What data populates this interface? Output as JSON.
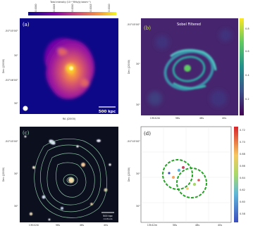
{
  "panels": {
    "a": {
      "label": "(a)",
      "colorbar_title": "Total intensity (10⁻⁴ MHz/Jy beam⁻¹)",
      "colorbar_ticks": [
        "0.0000",
        "0.0005",
        "0.0010",
        "0.0015",
        "0.0020"
      ],
      "scalebar_text": "500 kpc",
      "ylabel": "Dec (J2000)",
      "xlabel": "RA (J2000)",
      "y_ticks": [
        "-50°45'00\"",
        "30\"",
        "-50°46'00\"",
        "30\""
      ],
      "x_ticks": [
        "13h42m",
        "48s"
      ]
    },
    "b": {
      "label": "(b)",
      "title": "Sobel Filtered",
      "ylabel": "Dec (J2000)",
      "xlabel": "RA (J2000)",
      "y_ticks": [
        "-50°45'00\"",
        "30\"",
        "30\""
      ],
      "x_ticks": [
        "13h42m",
        "56s",
        "48s",
        "40s"
      ],
      "colorbar_ticks": [
        "0.8",
        "0.6",
        "0.4",
        "0.2"
      ]
    },
    "c": {
      "label": "(c)",
      "ylabel": "Dec (J2000)",
      "xlabel": "RA (J2000)",
      "y_ticks": [
        "-50°45'00\"",
        "30\"",
        "30\""
      ],
      "x_ticks": [
        "13h42m",
        "56s",
        "48s",
        "40s"
      ],
      "scalebar_text": "500 kpc",
      "scalebar_sub": "contours"
    },
    "d": {
      "label": "(d)",
      "ylabel": "Dec (J2000)",
      "xlabel": "RA (J2000)",
      "y_ticks": [
        "-50°45'00\"",
        "30\"",
        "30\""
      ],
      "x_ticks": [
        "13h42m",
        "56s",
        "48s",
        "40s"
      ],
      "colorbar_ticks": [
        "0.72",
        "0.70",
        "0.68",
        "0.66",
        "0.64",
        "0.62",
        "0.60",
        "0.58"
      ]
    }
  },
  "colors": {
    "plasma_dark": "#0d0887",
    "plasma_mid": "#cc4778",
    "plasma_bright": "#f0f921",
    "viridis_dark": "#440154",
    "viridis_mid": "#21918c",
    "viridis_bright": "#fde725",
    "circle_green": "#22a322"
  }
}
